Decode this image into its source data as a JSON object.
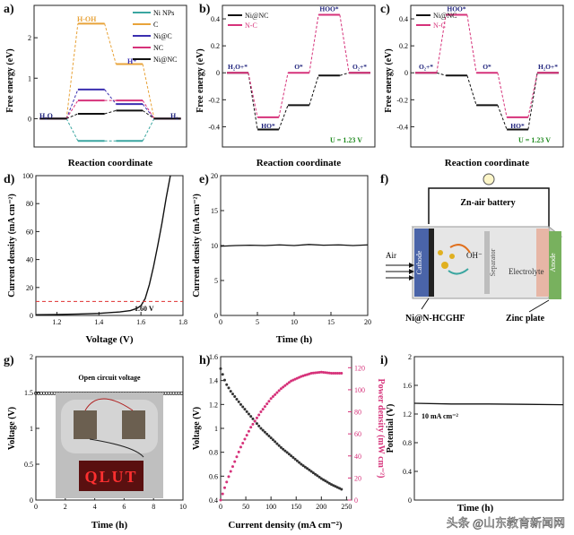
{
  "panels": {
    "a": {
      "label": "a)",
      "ylabel": "Free energy (eV)",
      "xlabel": "Reaction coordinate",
      "annotations": [
        "H-OH",
        "H*",
        "H₂O",
        "H₂"
      ],
      "legend": [
        "Ni NPs",
        "C",
        "Ni@C",
        "NC",
        "Ni@NC"
      ]
    },
    "b": {
      "label": "b)",
      "ylabel": "Free energy (eV)",
      "xlabel": "Reaction coordinate",
      "legend": [
        "Ni@NC",
        "N-C"
      ],
      "annotations": [
        "H₂O+*",
        "HO*",
        "O*",
        "HOO*",
        "O₂+*"
      ],
      "note": "U = 1.23 V"
    },
    "c": {
      "label": "c)",
      "ylabel": "Free energy (eV)",
      "xlabel": "Reaction coordinate",
      "legend": [
        "Ni@NC",
        "N-C"
      ],
      "annotations": [
        "O₂+*",
        "HOO*",
        "O*",
        "HO*",
        "H₂O+*"
      ],
      "note": "U = 1.23 V"
    },
    "d": {
      "label": "d)",
      "ylabel": "Current density (mA cm⁻²)",
      "xlabel": "Voltage (V)",
      "annotation": "1.60 V"
    },
    "e": {
      "label": "e)",
      "ylabel": "Current density (mA cm⁻²)",
      "xlabel": "Time (h)"
    },
    "f": {
      "label": "f)",
      "title": "Zn-air battery",
      "labels": [
        "Air",
        "Cathode",
        "OH⁻",
        "Separator",
        "Electrolyte",
        "Anode",
        "Ni@N-HCGHF",
        "Zinc plate"
      ]
    },
    "g": {
      "label": "g)",
      "ylabel": "Voltage (V)",
      "xlabel": "Time (h)",
      "annotation": "Open circuit voltage",
      "led_text": "QLUT"
    },
    "h": {
      "label": "h)",
      "ylabel": "Voltage (V)",
      "y2label": "Power density (mW cm⁻²)",
      "xlabel": "Current density (mA cm⁻²)"
    },
    "i": {
      "label": "i)",
      "ylabel": "Potential (V)",
      "xlabel": "Time (h)",
      "annotation": "10 mA cm⁻²"
    }
  },
  "watermark": "头条 @山东教育新闻网",
  "colors": {
    "ni_nps": "#3aa6a0",
    "c": "#e8a33a",
    "ni_c": "#3b2fb0",
    "nc": "#d6327a",
    "ni_nc": "#111111",
    "pink": "#d6327a",
    "red_dash": "#e03030",
    "green": "#1f8a1f",
    "navy": "#1b1f7a"
  },
  "chart_data": [
    {
      "id": "a",
      "type": "line",
      "x": [
        0,
        1,
        2,
        3
      ],
      "series": [
        {
          "name": "Ni NPs",
          "values": [
            0,
            -0.55,
            -0.55,
            0
          ]
        },
        {
          "name": "C",
          "values": [
            0,
            2.35,
            1.35,
            0
          ]
        },
        {
          "name": "Ni@C",
          "values": [
            0,
            0.72,
            0.36,
            0
          ]
        },
        {
          "name": "NC",
          "values": [
            0,
            0.45,
            0.45,
            0
          ]
        },
        {
          "name": "Ni@NC",
          "values": [
            0,
            0.12,
            0.2,
            0
          ]
        }
      ],
      "ylim": [
        -0.7,
        2.8
      ],
      "yticks": [
        0,
        1,
        2
      ]
    },
    {
      "id": "b",
      "type": "line",
      "x": [
        0,
        1,
        2,
        3,
        4
      ],
      "series": [
        {
          "name": "Ni@NC",
          "values": [
            0,
            -0.42,
            -0.24,
            -0.02,
            0
          ]
        },
        {
          "name": "N-C",
          "values": [
            0,
            -0.33,
            0,
            0.43,
            0
          ]
        }
      ],
      "ylim": [
        -0.55,
        0.5
      ],
      "yticks": [
        -0.4,
        -0.2,
        0.0,
        0.2,
        0.4
      ]
    },
    {
      "id": "c",
      "type": "line",
      "x": [
        0,
        1,
        2,
        3,
        4
      ],
      "series": [
        {
          "name": "Ni@NC",
          "values": [
            0,
            -0.02,
            -0.24,
            -0.42,
            0
          ]
        },
        {
          "name": "N-C",
          "values": [
            0,
            0.43,
            0,
            -0.33,
            0
          ]
        }
      ],
      "ylim": [
        -0.55,
        0.5
      ],
      "yticks": [
        -0.4,
        -0.2,
        0.0,
        0.2,
        0.4
      ]
    },
    {
      "id": "d",
      "type": "line",
      "x": [
        1.1,
        1.2,
        1.3,
        1.4,
        1.5,
        1.55,
        1.58,
        1.6,
        1.62,
        1.64,
        1.66,
        1.68,
        1.7,
        1.72,
        1.74
      ],
      "series": [
        {
          "name": "",
          "values": [
            0.5,
            0.7,
            1,
            1.5,
            2.5,
            3.5,
            5,
            7,
            12,
            22,
            35,
            50,
            66,
            84,
            100
          ]
        }
      ],
      "reference": 10,
      "xlim": [
        1.1,
        1.8
      ],
      "ylim": [
        0,
        100
      ],
      "xticks": [
        1.2,
        1.4,
        1.6,
        1.8
      ],
      "yticks": [
        0,
        20,
        40,
        60,
        80,
        100
      ]
    },
    {
      "id": "e",
      "type": "line",
      "x": [
        0,
        2,
        4,
        6,
        8,
        10,
        12,
        14,
        16,
        18,
        20
      ],
      "series": [
        {
          "name": "",
          "values": [
            9.9,
            10.0,
            10.05,
            10.0,
            10.1,
            10.0,
            10.15,
            10.05,
            10.1,
            10.0,
            10.1
          ]
        }
      ],
      "xlim": [
        0,
        20
      ],
      "ylim": [
        0,
        20
      ],
      "xticks": [
        0,
        5,
        10,
        15,
        20
      ],
      "yticks": [
        0,
        5,
        10,
        15,
        20
      ]
    },
    {
      "id": "g",
      "type": "scatter",
      "x": [
        0,
        1,
        2,
        3,
        4,
        5,
        6,
        7,
        8,
        9,
        10
      ],
      "series": [
        {
          "name": "",
          "values": [
            1.49,
            1.49,
            1.49,
            1.49,
            1.49,
            1.49,
            1.49,
            1.49,
            1.49,
            1.49,
            1.49
          ]
        }
      ],
      "xlim": [
        0,
        10
      ],
      "ylim": [
        0,
        2
      ],
      "xticks": [
        0,
        2,
        4,
        6,
        8,
        10
      ],
      "yticks": [
        0.0,
        0.5,
        1.0,
        1.5,
        2.0
      ]
    },
    {
      "id": "h",
      "type": "scatter",
      "x": [
        0,
        10,
        20,
        40,
        60,
        80,
        100,
        120,
        140,
        160,
        180,
        200,
        220,
        240
      ],
      "series": [
        {
          "name": "Voltage",
          "values": [
            1.5,
            1.38,
            1.31,
            1.2,
            1.1,
            1.0,
            0.92,
            0.84,
            0.77,
            0.7,
            0.64,
            0.58,
            0.53,
            0.49
          ]
        },
        {
          "name": "Power density",
          "values": [
            0,
            14,
            26,
            48,
            66,
            80,
            92,
            101,
            108,
            112,
            115,
            116,
            115,
            115
          ]
        }
      ],
      "xlim": [
        0,
        260
      ],
      "ylim": [
        0.4,
        1.6
      ],
      "y2lim": [
        0,
        130
      ],
      "xticks": [
        0,
        50,
        100,
        150,
        200,
        250
      ],
      "yticks": [
        0.4,
        0.6,
        0.8,
        1.0,
        1.2,
        1.4,
        1.6
      ],
      "y2ticks": [
        0,
        20,
        40,
        60,
        80,
        100,
        120
      ]
    },
    {
      "id": "i",
      "type": "line",
      "x": [
        0,
        10,
        20,
        30,
        40
      ],
      "series": [
        {
          "name": "",
          "values": [
            1.35,
            1.34,
            1.34,
            1.335,
            1.33
          ]
        }
      ],
      "ylim": [
        0,
        2.0
      ],
      "yticks": [
        0.0,
        0.4,
        0.8,
        1.2,
        1.6,
        2.0
      ]
    }
  ]
}
